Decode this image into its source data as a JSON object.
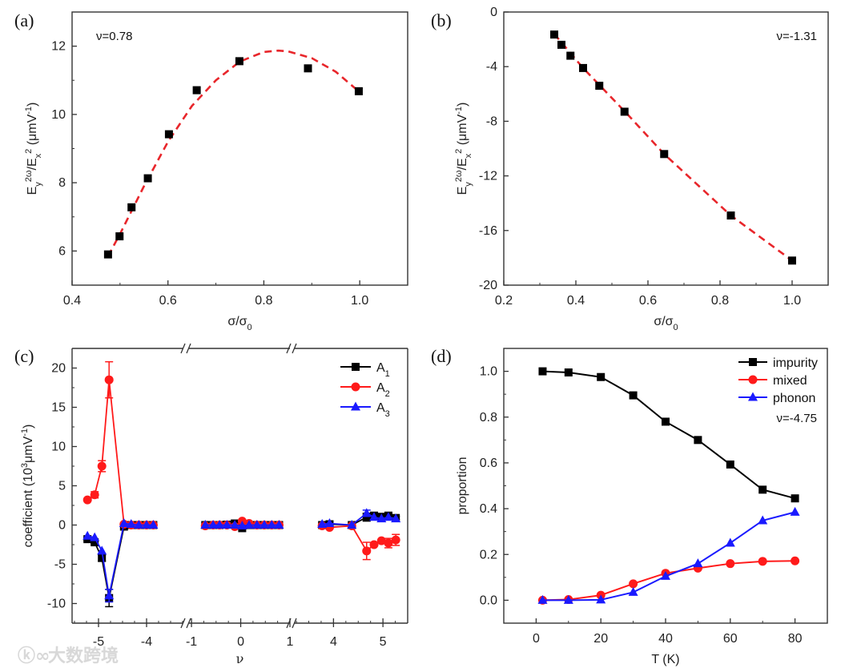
{
  "watermark": "大数跨境",
  "colors": {
    "black": "#000000",
    "red": "#ff1a1a",
    "blue": "#1a1aff",
    "fit": "#e8262b",
    "axis": "#333333"
  },
  "chart_data": [
    {
      "id": "a",
      "panel_label": "(a)",
      "type": "scatter",
      "annotation": "ν=0.78",
      "xlabel": [
        {
          "t": "σ/σ"
        },
        {
          "t": "0",
          "s": "sub"
        }
      ],
      "ylabel": [
        {
          "t": "E"
        },
        {
          "t": "y",
          "s": "sub"
        },
        {
          "t": "2ω",
          "s": "super"
        },
        {
          "t": "/E"
        },
        {
          "t": "x",
          "s": "sub"
        },
        {
          "t": "2",
          "s": "super"
        },
        {
          "t": " (μmV"
        },
        {
          "t": "-1",
          "s": "super"
        },
        {
          "t": ")"
        }
      ],
      "xlim": [
        0.4,
        1.1
      ],
      "ylim": [
        5,
        13
      ],
      "xticks": [
        "0.4",
        "0.6",
        "0.8",
        "1.0"
      ],
      "yticks": [
        "6",
        "8",
        "10",
        "12"
      ],
      "x": [
        0.475,
        0.499,
        0.524,
        0.558,
        0.602,
        0.66,
        0.749,
        0.892,
        0.998
      ],
      "y": [
        5.9,
        6.43,
        7.28,
        8.13,
        9.42,
        10.71,
        11.56,
        11.35,
        10.68
      ],
      "fit": {
        "x": [
          0.475,
          0.5,
          0.55,
          0.6,
          0.65,
          0.7,
          0.75,
          0.8,
          0.83,
          0.85,
          0.9,
          0.95,
          1.0
        ],
        "y": [
          5.85,
          6.5,
          7.9,
          9.2,
          10.25,
          11.0,
          11.55,
          11.83,
          11.87,
          11.85,
          11.65,
          11.25,
          10.65
        ]
      }
    },
    {
      "id": "b",
      "panel_label": "(b)",
      "type": "scatter",
      "annotation": "ν=-1.31",
      "xlabel": [
        {
          "t": "σ/σ"
        },
        {
          "t": "0",
          "s": "sub"
        }
      ],
      "ylabel": [
        {
          "t": "E"
        },
        {
          "t": "y",
          "s": "sub"
        },
        {
          "t": "2ω",
          "s": "super"
        },
        {
          "t": "/E"
        },
        {
          "t": "x",
          "s": "sub"
        },
        {
          "t": "2",
          "s": "super"
        },
        {
          "t": " (μmV"
        },
        {
          "t": "-1",
          "s": "super"
        },
        {
          "t": ")"
        }
      ],
      "xlim": [
        0.2,
        1.1
      ],
      "ylim": [
        -20,
        0
      ],
      "xticks": [
        "0.2",
        "0.4",
        "0.6",
        "0.8",
        "1.0"
      ],
      "yticks": [
        "0",
        "-4",
        "-8",
        "-12",
        "-16",
        "-20"
      ],
      "x": [
        0.34,
        0.36,
        0.385,
        0.42,
        0.465,
        0.535,
        0.645,
        0.83,
        1.0
      ],
      "y": [
        -1.65,
        -2.4,
        -3.2,
        -4.1,
        -5.4,
        -7.3,
        -10.4,
        -14.9,
        -18.2
      ],
      "fit": {
        "x": [
          0.34,
          0.42,
          0.54,
          0.645,
          0.83,
          1.0
        ],
        "y": [
          -1.6,
          -4.1,
          -7.4,
          -10.4,
          -14.9,
          -18.2
        ]
      }
    },
    {
      "id": "c",
      "panel_label": "(c)",
      "type": "line",
      "xlabel": [
        {
          "t": "ν"
        }
      ],
      "ylabel": [
        {
          "t": "coefficient (10"
        },
        {
          "t": "3",
          "s": "super"
        },
        {
          "t": "μmV"
        },
        {
          "t": "-1",
          "s": "super"
        },
        {
          "t": ")"
        }
      ],
      "ylim": [
        -12.5,
        22.5
      ],
      "yticks": [
        "-10",
        "-5",
        "0",
        "5",
        "10",
        "15",
        "20"
      ],
      "x_segments": [
        {
          "range": [
            -5.55,
            -3.25
          ],
          "ticks": [
            "-5",
            "-4"
          ]
        },
        {
          "range": [
            -1.05,
            1.0
          ],
          "ticks": [
            "-1",
            "0",
            "1"
          ]
        },
        {
          "range": [
            3.2,
            5.5
          ],
          "ticks": [
            "4",
            "5"
          ]
        }
      ],
      "x": [
        [
          -5.23,
          -5.08,
          -4.93,
          -4.78,
          -4.47,
          -4.32,
          -4.16,
          -4.0,
          -3.86
        ],
        [
          -0.72,
          -0.56,
          -0.43,
          -0.28,
          -0.12,
          0.03,
          0.17,
          0.33,
          0.48,
          0.63,
          0.78
        ],
        [
          3.77,
          3.92,
          4.37,
          4.67,
          4.82,
          4.97,
          5.11,
          5.26
        ]
      ],
      "series": [
        {
          "name": "A",
          "sub": "1",
          "marker": "square",
          "color": "#000000",
          "values": [
            [
              -1.8,
              -2.2,
              -4.2,
              -9.3,
              -0.2,
              0,
              0,
              0,
              0
            ],
            [
              0,
              0,
              0,
              0.05,
              0.2,
              -0.4,
              0,
              0,
              0,
              0,
              0
            ],
            [
              0,
              0.1,
              0,
              1.0,
              1.2,
              1.05,
              1.2,
              0.9
            ]
          ],
          "errors": [
            [
              0.2,
              0.2,
              0.4,
              1.1,
              0,
              0,
              0,
              0,
              0
            ],
            [
              0,
              0,
              0,
              0,
              0,
              0,
              0,
              0,
              0,
              0,
              0
            ],
            [
              0,
              0,
              0,
              0.5,
              0.2,
              0,
              0.2,
              0.2
            ]
          ]
        },
        {
          "name": "A",
          "sub": "2",
          "marker": "circle",
          "color": "#ff1a1a",
          "values": [
            [
              3.2,
              3.85,
              7.5,
              18.5,
              0.1,
              0,
              0,
              0,
              0
            ],
            [
              -0.1,
              0,
              0,
              0,
              -0.2,
              0.5,
              0.2,
              0,
              0,
              0,
              0
            ],
            [
              -0.1,
              -0.3,
              -0.1,
              -3.3,
              -2.5,
              -2.0,
              -2.3,
              -1.9
            ]
          ],
          "errors": [
            [
              0,
              0.4,
              0.7,
              2.3,
              0,
              0,
              0,
              0,
              0
            ],
            [
              0,
              0,
              0,
              0,
              0,
              0,
              0,
              0,
              0,
              0,
              0
            ],
            [
              0,
              0,
              0,
              1.1,
              0,
              0,
              0.6,
              0.7
            ]
          ]
        },
        {
          "name": "A",
          "sub": "3",
          "marker": "triangle",
          "color": "#1a1aff",
          "values": [
            [
              -1.4,
              -1.6,
              -3.3,
              -9.0,
              0.2,
              0.1,
              0,
              0,
              0
            ],
            [
              0,
              0,
              0,
              0,
              0,
              -0.1,
              0,
              0,
              0,
              0,
              0
            ],
            [
              0.1,
              0.2,
              0,
              1.5,
              1.0,
              0.8,
              1.0,
              0.8
            ]
          ],
          "errors": [
            [
              0,
              0,
              0,
              0.8,
              0,
              0,
              0,
              0,
              0
            ],
            [
              0,
              0,
              0,
              0,
              0,
              0,
              0,
              0,
              0,
              0,
              0
            ],
            [
              0,
              0,
              0,
              0.4,
              0,
              0,
              0,
              0
            ]
          ]
        }
      ],
      "legend_position": "top-right"
    },
    {
      "id": "d",
      "panel_label": "(d)",
      "type": "line",
      "annotation": "ν=-4.75",
      "xlabel": [
        {
          "t": "T (K)"
        }
      ],
      "ylabel": [
        {
          "t": "proportion"
        }
      ],
      "xlim": [
        -10,
        90
      ],
      "ylim": [
        -0.1,
        1.1
      ],
      "xticks": [
        "0",
        "20",
        "40",
        "60",
        "80"
      ],
      "yticks": [
        "0.0",
        "0.2",
        "0.4",
        "0.6",
        "0.8",
        "1.0"
      ],
      "x": [
        2,
        10,
        20,
        30,
        40,
        50,
        60,
        70,
        80
      ],
      "series": [
        {
          "name": "impurity",
          "marker": "square",
          "color": "#000000",
          "values": [
            1.0,
            0.995,
            0.975,
            0.895,
            0.78,
            0.7,
            0.593,
            0.483,
            0.445
          ]
        },
        {
          "name": "mixed",
          "marker": "circle",
          "color": "#ff1a1a",
          "values": [
            0,
            0.003,
            0.022,
            0.072,
            0.118,
            0.14,
            0.16,
            0.17,
            0.172
          ]
        },
        {
          "name": "phonon",
          "marker": "triangle",
          "color": "#1a1aff",
          "values": [
            0,
            0,
            0.002,
            0.035,
            0.105,
            0.16,
            0.25,
            0.348,
            0.385
          ]
        }
      ],
      "legend_position": "top-right"
    }
  ]
}
